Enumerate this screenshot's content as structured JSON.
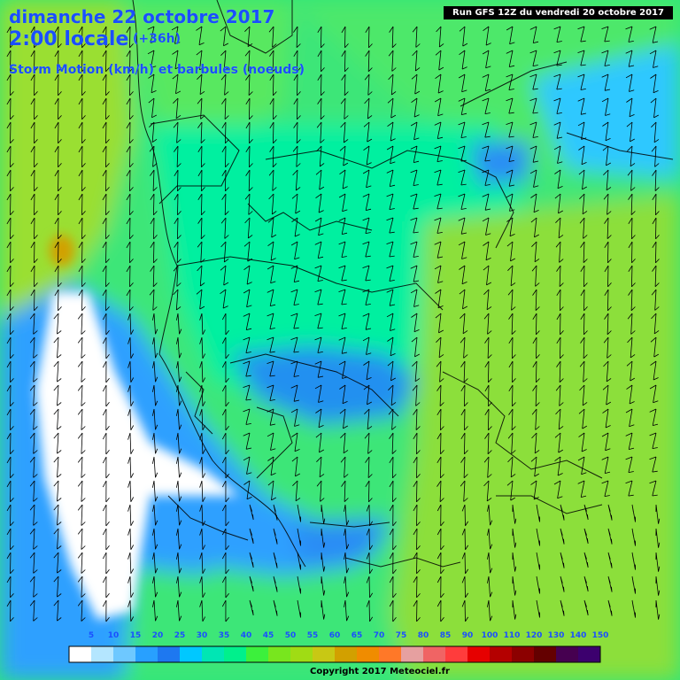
{
  "header": {
    "date_line": "dimanche 22 octobre 2017",
    "time_line": "2:00 locale",
    "lead_time": "(+36h)",
    "parameter": "Storm Motion (km/h) et barbules (noeuds)",
    "run_label": "Run GFS 12Z du vendredi 20 octobre 2017"
  },
  "legend": {
    "ticks": [
      "5",
      "10",
      "15",
      "20",
      "25",
      "30",
      "35",
      "40",
      "45",
      "50",
      "55",
      "60",
      "65",
      "70",
      "75",
      "80",
      "85",
      "90",
      "100",
      "110",
      "120",
      "130",
      "140",
      "150"
    ],
    "colors": [
      "#ffffff",
      "#b4e6ff",
      "#6ec8ff",
      "#28a0ff",
      "#1e78f0",
      "#00c8ff",
      "#00e6b4",
      "#00f08c",
      "#3cf03c",
      "#78e61e",
      "#a0dc14",
      "#c8c814",
      "#d2a000",
      "#f08c00",
      "#ff7828",
      "#e6a0a0",
      "#f06464",
      "#ff3c3c",
      "#e60000",
      "#b40000",
      "#8c0000",
      "#640000",
      "#460050",
      "#3c006e"
    ]
  },
  "footer": {
    "copyright": "Copyright 2017 Meteociel.fr"
  },
  "colors": {
    "title_blue": "#1a4fff",
    "field_green": "#2ee67a",
    "calm_white": "#ffffff",
    "deep_blue": "#1e78f0"
  }
}
